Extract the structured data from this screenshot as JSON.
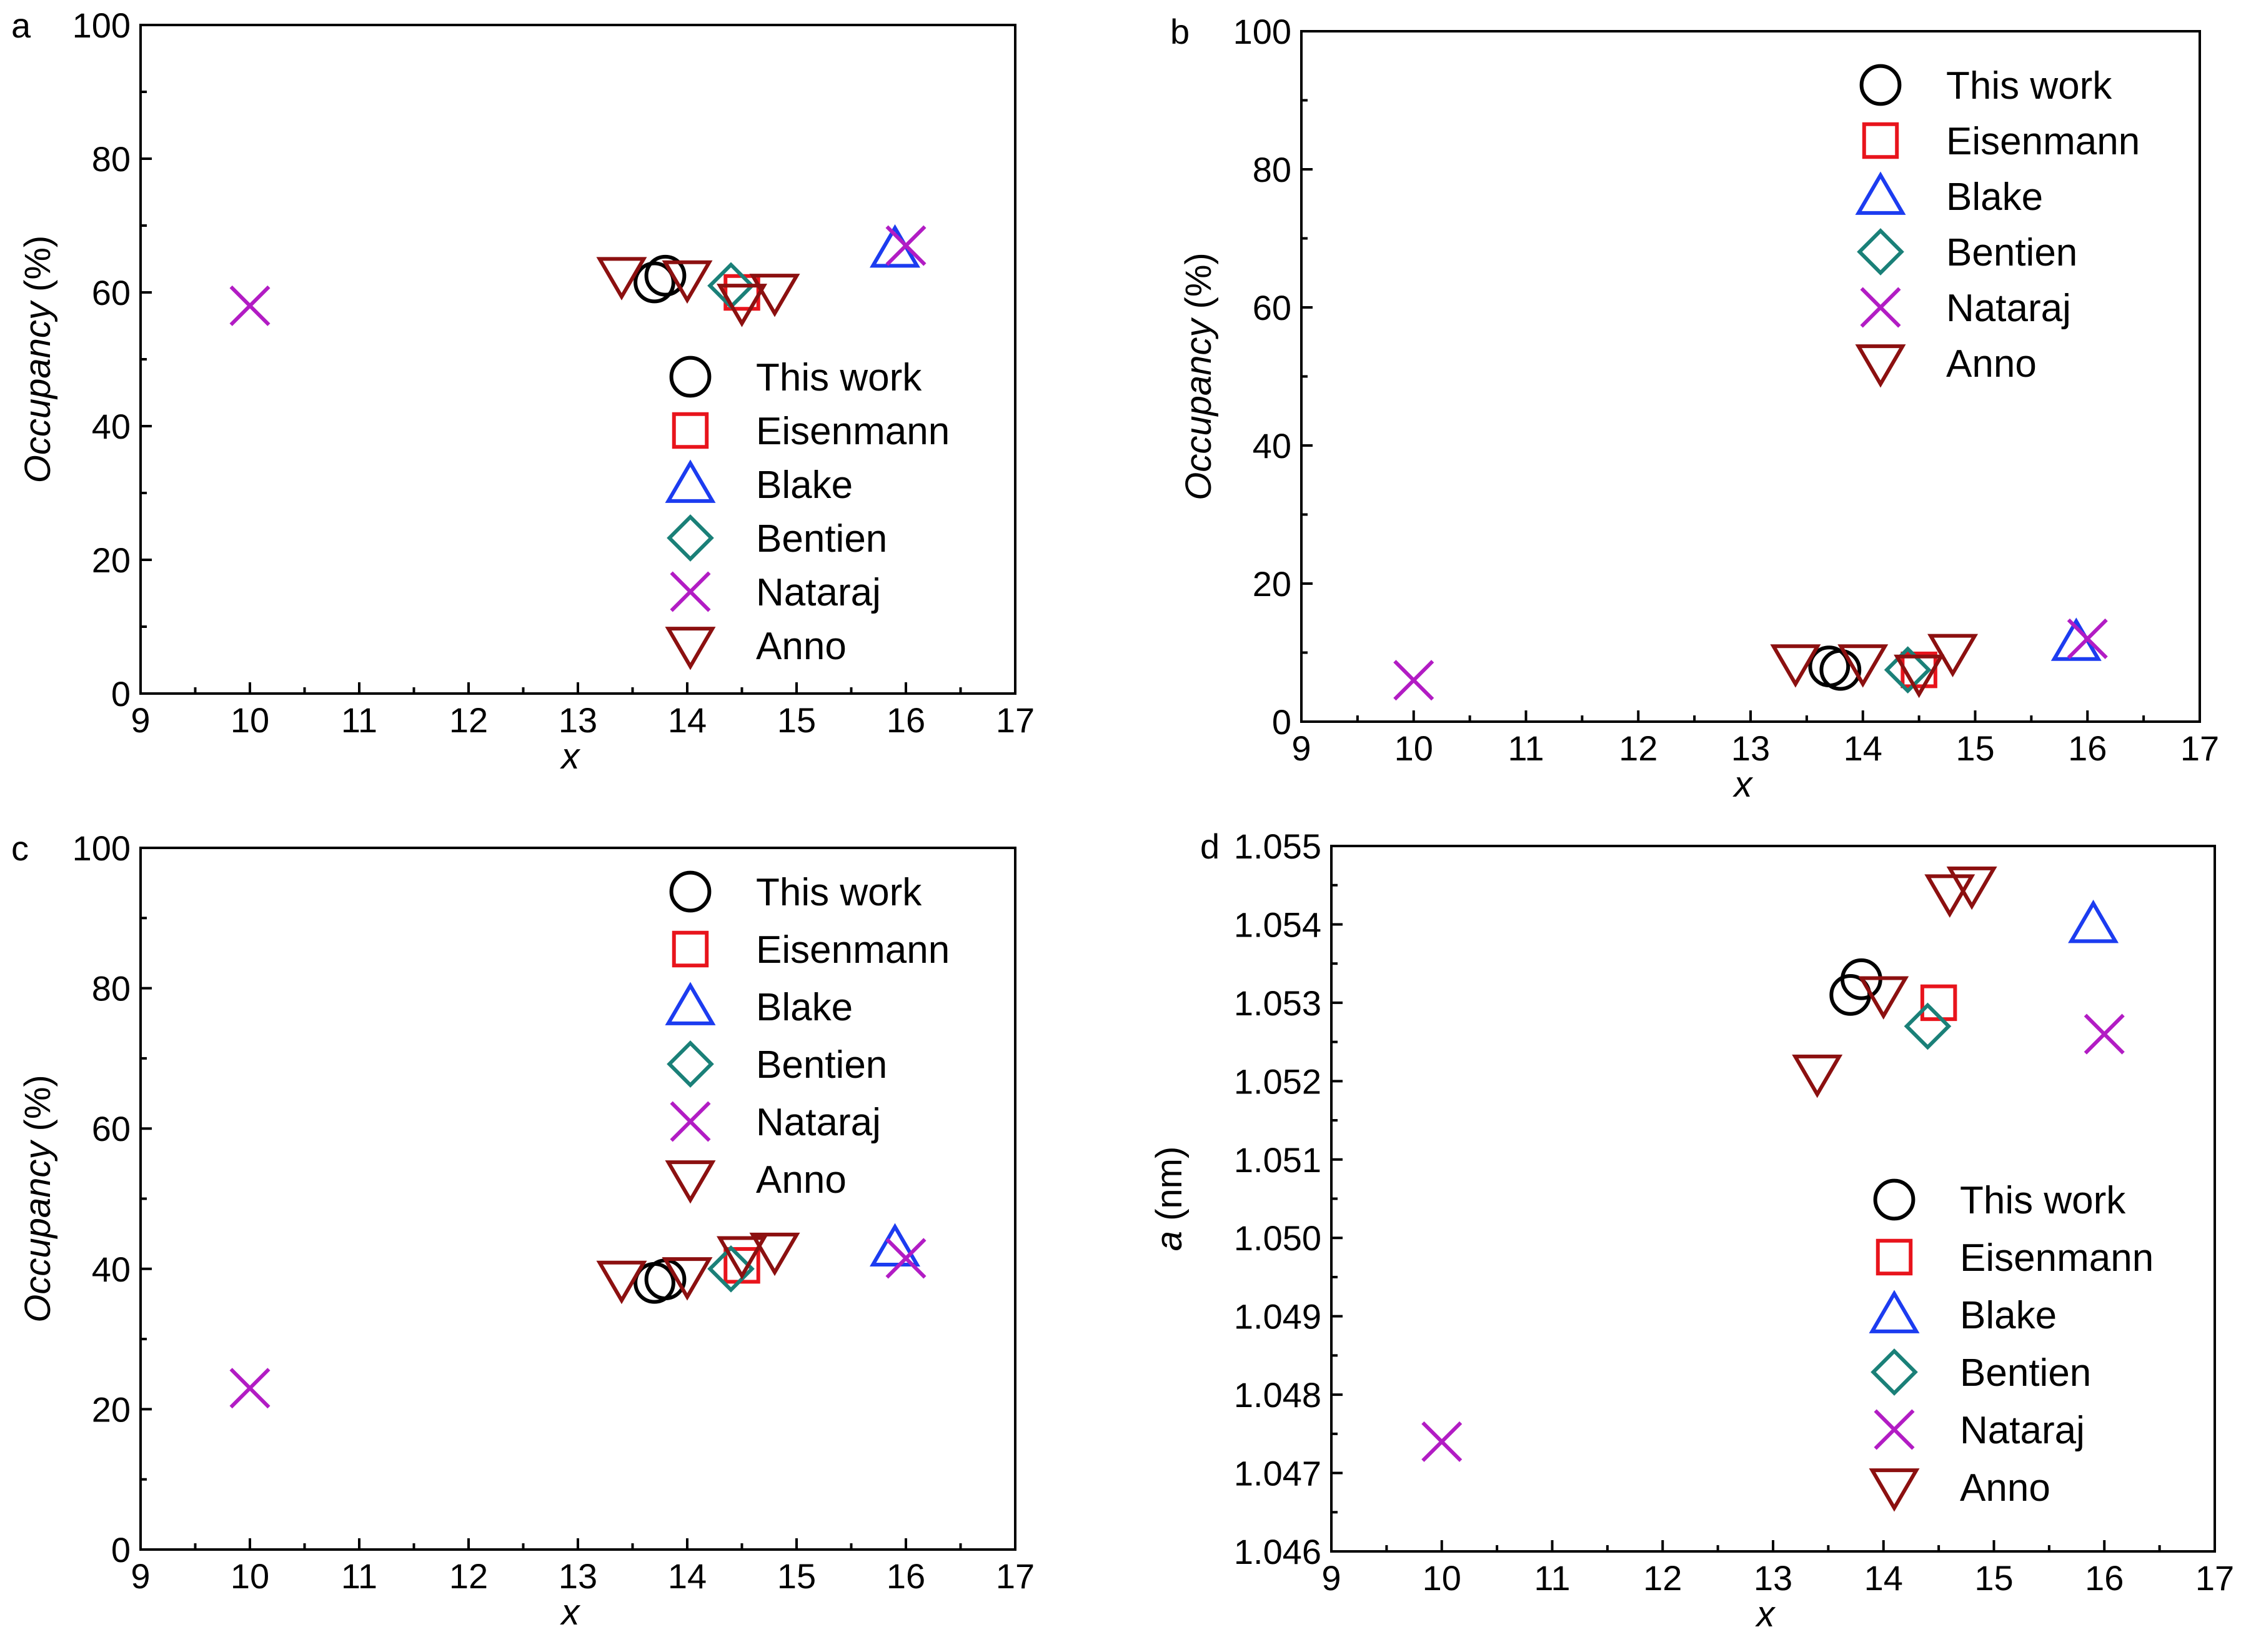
{
  "legend_labels": [
    "This work",
    "Eisenmann",
    "Blake",
    "Bentien",
    "Nataraj",
    "Anno"
  ],
  "series_styles": {
    "This work": {
      "marker": "circle",
      "color": "#000000"
    },
    "Eisenmann": {
      "marker": "square",
      "color": "#e8141c"
    },
    "Blake": {
      "marker": "triangle",
      "color": "#1c3cf0"
    },
    "Bentien": {
      "marker": "diamond",
      "color": "#1a8078"
    },
    "Nataraj": {
      "marker": "cross",
      "color": "#b21cc4"
    },
    "Anno": {
      "marker": "invtriangle",
      "color": "#8c1010"
    }
  },
  "chart_data": [
    {
      "type": "scatter",
      "panel": "a",
      "xlabel": "x",
      "ylabel": "Occupancy (%)",
      "xlim": [
        9,
        17
      ],
      "ylim": [
        0,
        100
      ],
      "xticks": [
        "9",
        "10",
        "11",
        "12",
        "13",
        "14",
        "15",
        "16",
        "17"
      ],
      "yticks": [
        "0",
        "20",
        "40",
        "60",
        "80",
        "100"
      ],
      "legend_position": "lower-right",
      "series": [
        {
          "name": "This work",
          "points": [
            [
              13.7,
              61.5
            ],
            [
              13.8,
              62.5
            ]
          ]
        },
        {
          "name": "Eisenmann",
          "points": [
            [
              14.5,
              60.0
            ]
          ]
        },
        {
          "name": "Blake",
          "points": [
            [
              15.9,
              66.5
            ]
          ]
        },
        {
          "name": "Bentien",
          "points": [
            [
              14.4,
              61.0
            ]
          ]
        },
        {
          "name": "Nataraj",
          "points": [
            [
              10.0,
              58.0
            ],
            [
              16.0,
              67.0
            ]
          ]
        },
        {
          "name": "Anno",
          "points": [
            [
              13.4,
              62.5
            ],
            [
              14.0,
              62.0
            ],
            [
              14.5,
              58.5
            ],
            [
              14.8,
              60.0
            ]
          ]
        }
      ]
    },
    {
      "type": "scatter",
      "panel": "b",
      "xlabel": "x",
      "ylabel": "Occupancy (%)",
      "xlim": [
        9,
        17
      ],
      "ylim": [
        0,
        100
      ],
      "xticks": [
        "9",
        "10",
        "11",
        "12",
        "13",
        "14",
        "15",
        "16",
        "17"
      ],
      "yticks": [
        "0",
        "20",
        "40",
        "60",
        "80",
        "100"
      ],
      "legend_position": "upper-right",
      "series": [
        {
          "name": "This work",
          "points": [
            [
              13.7,
              8.0
            ],
            [
              13.8,
              7.5
            ]
          ]
        },
        {
          "name": "Eisenmann",
          "points": [
            [
              14.5,
              7.5
            ]
          ]
        },
        {
          "name": "Blake",
          "points": [
            [
              15.9,
              11.5
            ]
          ]
        },
        {
          "name": "Bentien",
          "points": [
            [
              14.4,
              7.5
            ]
          ]
        },
        {
          "name": "Nataraj",
          "points": [
            [
              10.0,
              6.0
            ],
            [
              16.0,
              12.0
            ]
          ]
        },
        {
          "name": "Anno",
          "points": [
            [
              13.4,
              8.5
            ],
            [
              14.0,
              8.5
            ],
            [
              14.5,
              7.0
            ],
            [
              14.8,
              10.0
            ]
          ]
        }
      ]
    },
    {
      "type": "scatter",
      "panel": "c",
      "xlabel": "x",
      "ylabel": "Occupancy (%)",
      "xlim": [
        9,
        17
      ],
      "ylim": [
        0,
        100
      ],
      "xticks": [
        "9",
        "10",
        "11",
        "12",
        "13",
        "14",
        "15",
        "16",
        "17"
      ],
      "yticks": [
        "0",
        "20",
        "40",
        "60",
        "80",
        "100"
      ],
      "legend_position": "upper-right",
      "series": [
        {
          "name": "This work",
          "points": [
            [
              13.7,
              38.0
            ],
            [
              13.8,
              38.5
            ]
          ]
        },
        {
          "name": "Eisenmann",
          "points": [
            [
              14.5,
              40.5
            ]
          ]
        },
        {
          "name": "Blake",
          "points": [
            [
              15.9,
              43.0
            ]
          ]
        },
        {
          "name": "Bentien",
          "points": [
            [
              14.4,
              40.0
            ]
          ]
        },
        {
          "name": "Nataraj",
          "points": [
            [
              10.0,
              23.0
            ],
            [
              16.0,
              41.5
            ]
          ]
        },
        {
          "name": "Anno",
          "points": [
            [
              13.4,
              38.5
            ],
            [
              14.0,
              39.0
            ],
            [
              14.5,
              42.0
            ],
            [
              14.8,
              42.5
            ]
          ]
        }
      ]
    },
    {
      "type": "scatter",
      "panel": "d",
      "xlabel": "x",
      "ylabel": "a (nm)",
      "xlim": [
        9,
        17
      ],
      "ylim": [
        1.046,
        1.055
      ],
      "xticks": [
        "9",
        "10",
        "11",
        "12",
        "13",
        "14",
        "15",
        "16",
        "17"
      ],
      "yticks": [
        "1.046",
        "1.047",
        "1.048",
        "1.049",
        "1.050",
        "1.051",
        "1.052",
        "1.053",
        "1.054",
        "1.055"
      ],
      "legend_position": "lower-right",
      "series": [
        {
          "name": "This work",
          "points": [
            [
              13.7,
              1.0531
            ],
            [
              13.8,
              1.0533
            ]
          ]
        },
        {
          "name": "Eisenmann",
          "points": [
            [
              14.5,
              1.053
            ]
          ]
        },
        {
          "name": "Blake",
          "points": [
            [
              15.9,
              1.054
            ]
          ]
        },
        {
          "name": "Bentien",
          "points": [
            [
              14.4,
              1.0527
            ]
          ]
        },
        {
          "name": "Nataraj",
          "points": [
            [
              10.0,
              1.0474
            ],
            [
              16.0,
              1.0526
            ]
          ]
        },
        {
          "name": "Anno",
          "points": [
            [
              13.4,
              1.0521
            ],
            [
              14.0,
              1.0531
            ],
            [
              14.6,
              1.0544
            ],
            [
              14.8,
              1.0545
            ]
          ]
        }
      ]
    }
  ]
}
